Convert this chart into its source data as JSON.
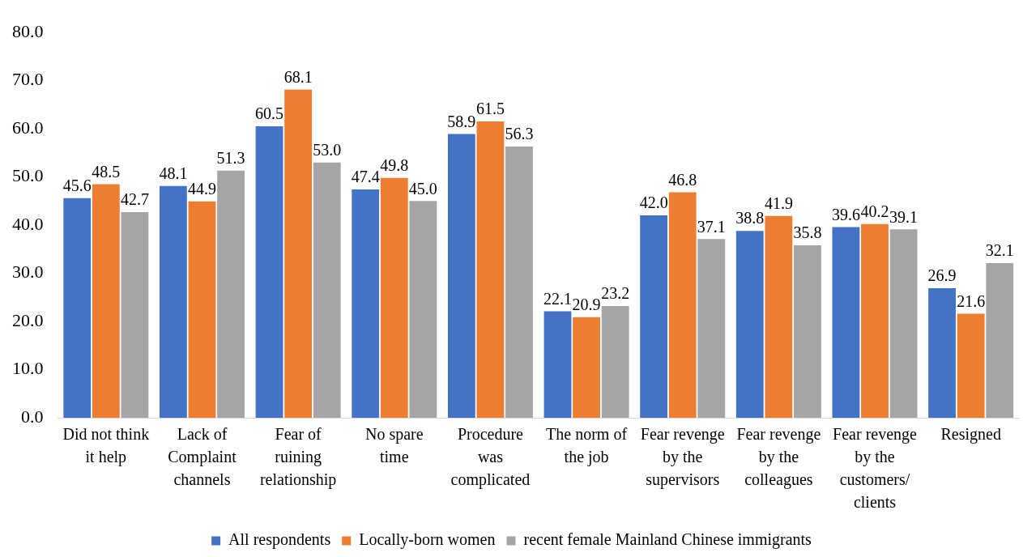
{
  "chart_data": {
    "type": "bar",
    "categories": [
      "Did not think it help",
      "Lack of Complaint channels",
      "Fear of ruining relationship",
      "No spare time",
      "Procedure was complicated",
      "The norm of the job",
      "Fear revenge by the supervisors",
      "Fear revenge by the colleagues",
      "Fear revenge by the customers/ clients",
      "Resigned"
    ],
    "series": [
      {
        "name": "All respondents",
        "color": "#4472c4",
        "values": [
          45.6,
          48.1,
          60.5,
          47.4,
          58.9,
          22.1,
          42.0,
          38.8,
          39.6,
          26.9
        ],
        "value_labels": [
          "45.6",
          "48.1",
          "60.5",
          "47.4",
          "58.9",
          "22.1",
          "42.0",
          "38.8",
          "39.6",
          "26.9"
        ]
      },
      {
        "name": "Locally-born women",
        "color": "#ed7d31",
        "values": [
          48.5,
          44.9,
          68.1,
          49.8,
          61.5,
          20.9,
          46.8,
          41.9,
          40.2,
          21.6
        ],
        "value_labels": [
          "48.5",
          "44.9",
          "68.1",
          "49.8",
          "61.5",
          "20.9",
          "46.8",
          "41.9",
          "40.2",
          "21.6"
        ]
      },
      {
        "name": "recent female Mainland Chinese immigrants",
        "color": "#a5a5a5",
        "values": [
          42.7,
          51.3,
          53.0,
          45.0,
          56.3,
          23.2,
          37.1,
          35.8,
          39.1,
          32.1
        ],
        "value_labels": [
          "42.7",
          "51.3",
          "53.0",
          "45.0",
          "56.3",
          "23.2",
          "37.1",
          "35.8",
          "39.1",
          "32.1"
        ]
      }
    ],
    "ylim": [
      0,
      80
    ],
    "yticks": [
      {
        "value": 0,
        "label": "0.0"
      },
      {
        "value": 10,
        "label": "10.0"
      },
      {
        "value": 20,
        "label": "20.0"
      },
      {
        "value": 30,
        "label": "30.0"
      },
      {
        "value": 40,
        "label": "40.0"
      },
      {
        "value": 50,
        "label": "50.0"
      },
      {
        "value": 60,
        "label": "60.0"
      },
      {
        "value": 70,
        "label": "70.0"
      },
      {
        "value": 80,
        "label": "80.0"
      }
    ],
    "grid": false,
    "legend": "bottom"
  }
}
